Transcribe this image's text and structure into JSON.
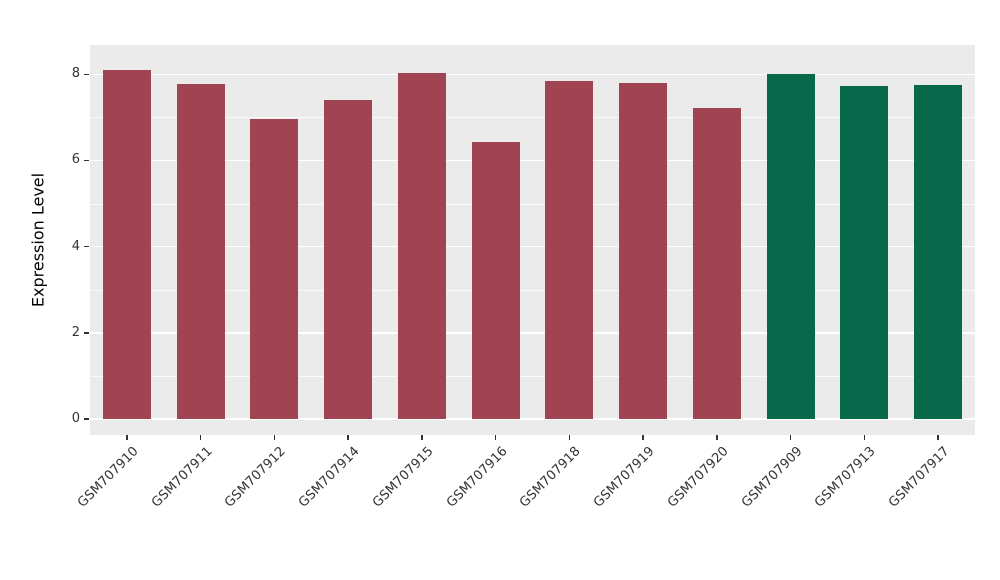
{
  "chart_data": {
    "type": "bar",
    "title": "",
    "xlabel": "",
    "ylabel": "Expression Level",
    "ylim": [
      0,
      8.65
    ],
    "yticks": [
      0,
      2,
      4,
      6,
      8
    ],
    "yticks_minor": [
      1,
      3,
      5,
      7
    ],
    "grid": "on",
    "legend": "none",
    "categories": [
      "GSM707910",
      "GSM707911",
      "GSM707912",
      "GSM707914",
      "GSM707915",
      "GSM707916",
      "GSM707918",
      "GSM707919",
      "GSM707920",
      "GSM707909",
      "GSM707913",
      "GSM707917"
    ],
    "values": [
      8.1,
      7.78,
      6.97,
      7.4,
      8.03,
      6.43,
      7.85,
      7.8,
      7.22,
      8.0,
      7.73,
      7.75
    ],
    "groups": [
      "red",
      "red",
      "red",
      "red",
      "red",
      "red",
      "red",
      "red",
      "red",
      "green",
      "green",
      "green"
    ],
    "group_colors": {
      "red": "#a04352",
      "green": "#07694a"
    },
    "panel_background": "#ebebeb",
    "gridline_color": "#ffffff",
    "tick_label_color": "#333333",
    "tick_mark_color": "#333333"
  }
}
